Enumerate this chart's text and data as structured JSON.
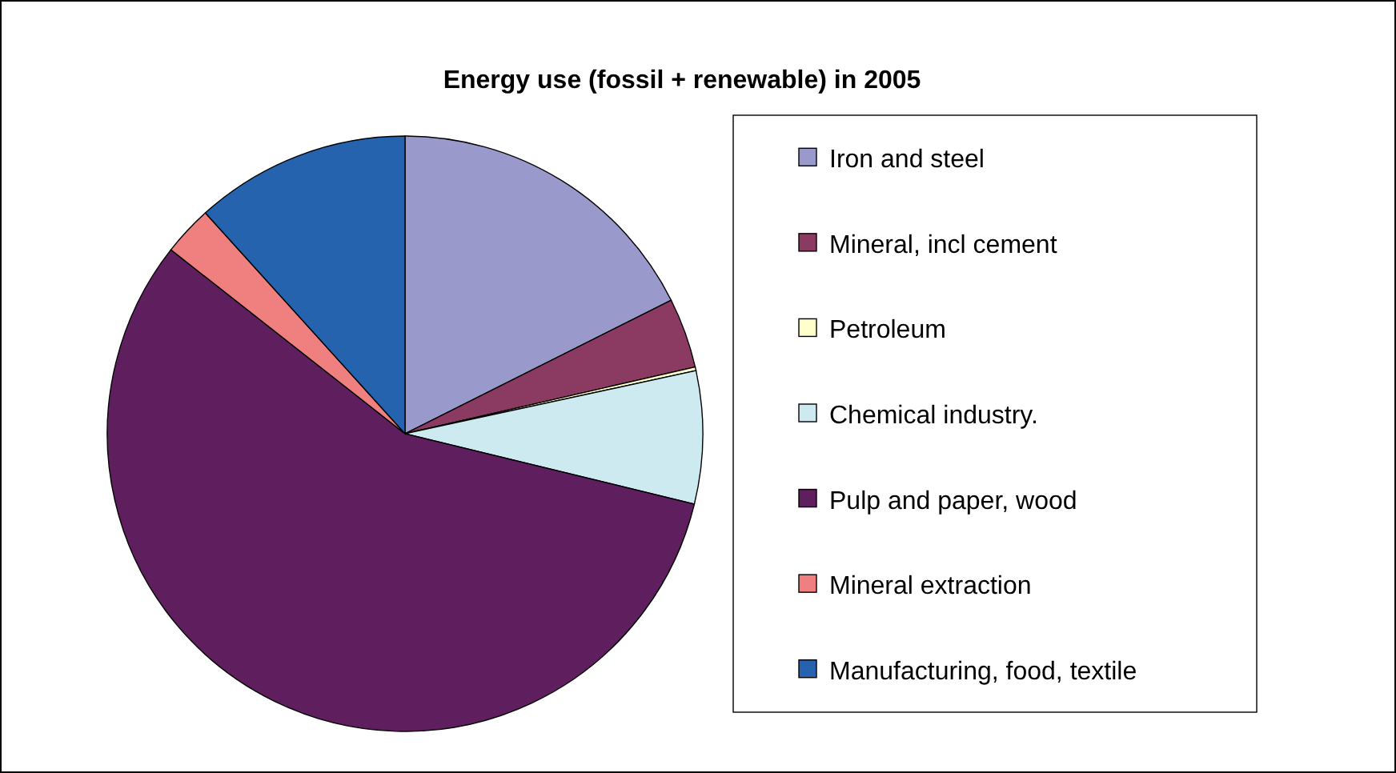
{
  "chart_data": {
    "type": "pie",
    "title": "Energy use (fossil + renewable) in 2005",
    "categories": [
      "Iron and steel",
      "Mineral, incl cement",
      "Petroleum",
      "Chemical industry.",
      "Pulp and paper, wood",
      "Mineral extraction",
      "Manufacturing, food, textile"
    ],
    "values": [
      17.6,
      3.8,
      0.2,
      7.2,
      56.8,
      2.7,
      11.7
    ],
    "colors": [
      "#9999cc",
      "#8b3a62",
      "#ffffcc",
      "#cdeaf0",
      "#5f1f5f",
      "#f08080",
      "#2563ae"
    ],
    "legend": "right"
  }
}
